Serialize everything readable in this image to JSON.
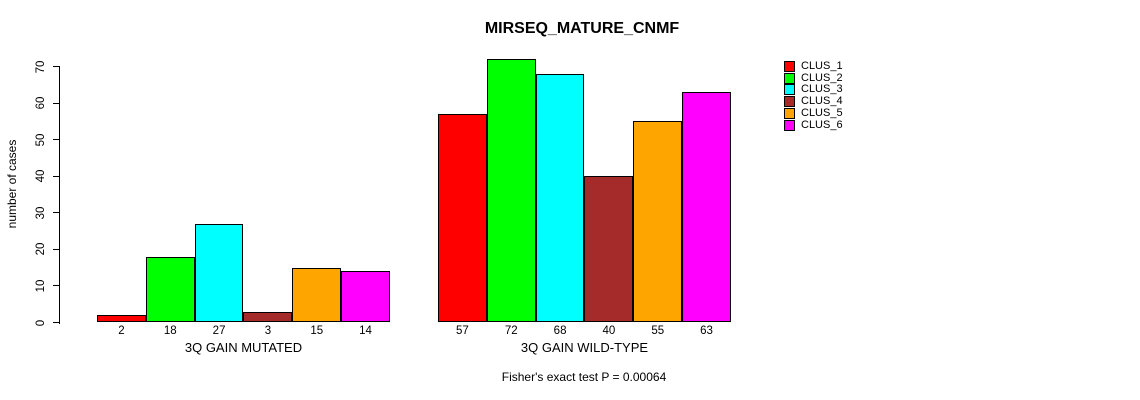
{
  "title": "MIRSEQ_MATURE_CNMF",
  "footnote": "Fisher's exact test P = 0.00064",
  "chart_data": {
    "type": "bar",
    "title": "MIRSEQ_MATURE_CNMF",
    "xlabel": "",
    "ylabel": "number of cases",
    "ylim": [
      0,
      70
    ],
    "yticks": [
      0,
      10,
      20,
      30,
      40,
      50,
      60,
      70
    ],
    "grid": false,
    "legend_position": "top-right",
    "categories": [
      "3Q GAIN MUTATED",
      "3Q GAIN WILD-TYPE"
    ],
    "series": [
      {
        "name": "CLUS_1",
        "color": "#FF0000",
        "values": [
          2,
          57
        ]
      },
      {
        "name": "CLUS_2",
        "color": "#00FF00",
        "values": [
          18,
          72
        ]
      },
      {
        "name": "CLUS_3",
        "color": "#00FFFF",
        "values": [
          27,
          68
        ]
      },
      {
        "name": "CLUS_4",
        "color": "#A52A2A",
        "values": [
          3,
          40
        ]
      },
      {
        "name": "CLUS_5",
        "color": "#FFA500",
        "values": [
          15,
          55
        ]
      },
      {
        "name": "CLUS_6",
        "color": "#FF00FF",
        "values": [
          14,
          63
        ]
      }
    ],
    "bar_value_labels": [
      [
        2,
        18,
        27,
        3,
        15,
        14
      ],
      [
        57,
        72,
        68,
        40,
        55,
        63
      ]
    ],
    "footnote": "Fisher's exact test P = 0.00064",
    "axis_color": "#000000",
    "background_color": "#FFFFFF"
  }
}
